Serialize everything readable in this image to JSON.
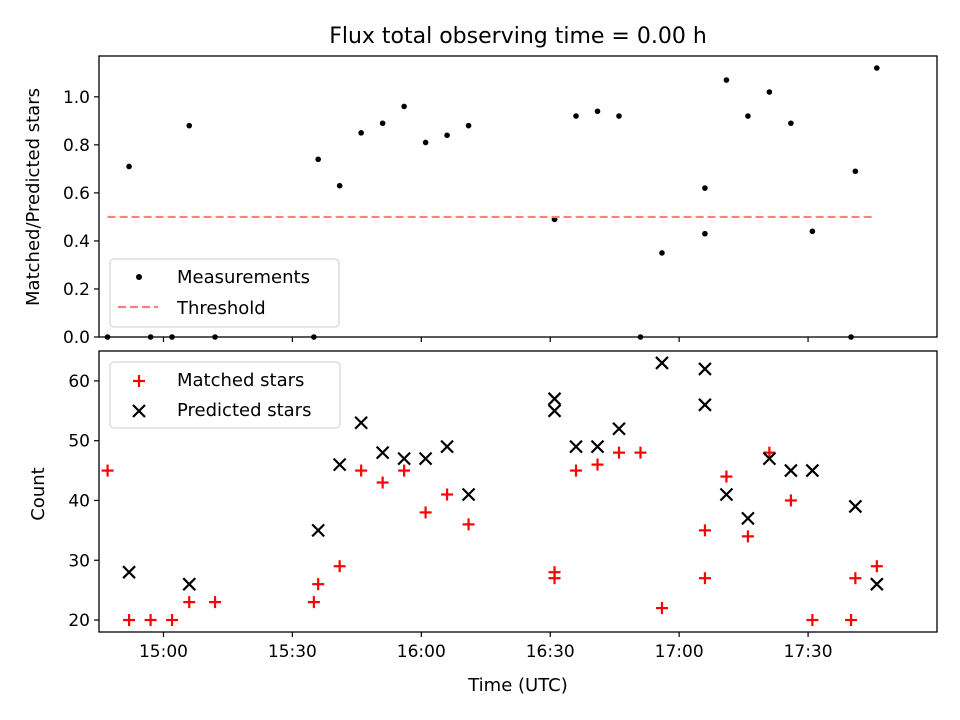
{
  "chart_data": [
    {
      "type": "scatter",
      "title": "Flux total observing time = 0.00 h",
      "xlabel": "",
      "ylabel": "Matched/Predicted stars",
      "xlim": [
        "14:45",
        "18:00"
      ],
      "ylim": [
        0,
        1.17
      ],
      "yticks": [
        "0.0",
        "0.2",
        "0.4",
        "0.6",
        "0.8",
        "1.0"
      ],
      "legend_position": "lower-left",
      "series": [
        {
          "name": "Measurements",
          "marker": "dot",
          "color": "#000000",
          "points": [
            [
              "14:47",
              0.0
            ],
            [
              "14:52",
              0.71
            ],
            [
              "14:57",
              0.0
            ],
            [
              "15:02",
              0.0
            ],
            [
              "15:06",
              0.88
            ],
            [
              "15:12",
              0.0
            ],
            [
              "15:35",
              0.0
            ],
            [
              "15:36",
              0.74
            ],
            [
              "15:41",
              0.63
            ],
            [
              "15:46",
              0.85
            ],
            [
              "15:51",
              0.89
            ],
            [
              "15:56",
              0.96
            ],
            [
              "16:01",
              0.81
            ],
            [
              "16:06",
              0.84
            ],
            [
              "16:11",
              0.88
            ],
            [
              "16:31",
              0.49
            ],
            [
              "16:31",
              0.49
            ],
            [
              "16:36",
              0.92
            ],
            [
              "16:41",
              0.94
            ],
            [
              "16:46",
              0.92
            ],
            [
              "16:51",
              0.0
            ],
            [
              "16:56",
              0.35
            ],
            [
              "17:06",
              0.43
            ],
            [
              "17:06",
              0.62
            ],
            [
              "17:11",
              1.07
            ],
            [
              "17:16",
              0.92
            ],
            [
              "17:21",
              1.02
            ],
            [
              "17:26",
              0.89
            ],
            [
              "17:31",
              0.44
            ],
            [
              "17:40",
              0.0
            ],
            [
              "17:41",
              0.69
            ],
            [
              "17:46",
              1.12
            ]
          ]
        },
        {
          "name": "Threshold",
          "marker": "dashed-line",
          "color": "#ff7f7f",
          "points": [
            [
              "14:47",
              0.5
            ],
            [
              "17:45",
              0.5
            ]
          ]
        }
      ]
    },
    {
      "type": "scatter",
      "title": "",
      "xlabel": "Time (UTC)",
      "ylabel": "Count",
      "xlim": [
        "14:45",
        "18:00"
      ],
      "ylim": [
        18,
        65
      ],
      "yticks": [
        "20",
        "30",
        "40",
        "50",
        "60"
      ],
      "xticks": [
        "15:00",
        "15:30",
        "16:00",
        "16:30",
        "17:00",
        "17:30"
      ],
      "legend_position": "upper-left",
      "series": [
        {
          "name": "Matched stars",
          "marker": "plus",
          "color": "#ff0000",
          "points": [
            [
              "14:47",
              45
            ],
            [
              "14:52",
              20
            ],
            [
              "14:57",
              20
            ],
            [
              "15:02",
              20
            ],
            [
              "15:06",
              23
            ],
            [
              "15:12",
              23
            ],
            [
              "15:35",
              23
            ],
            [
              "15:36",
              26
            ],
            [
              "15:41",
              29
            ],
            [
              "15:46",
              45
            ],
            [
              "15:51",
              43
            ],
            [
              "15:56",
              45
            ],
            [
              "16:01",
              38
            ],
            [
              "16:06",
              41
            ],
            [
              "16:11",
              36
            ],
            [
              "16:31",
              27
            ],
            [
              "16:31",
              28
            ],
            [
              "16:36",
              45
            ],
            [
              "16:41",
              46
            ],
            [
              "16:46",
              48
            ],
            [
              "16:51",
              48
            ],
            [
              "16:56",
              22
            ],
            [
              "17:06",
              27
            ],
            [
              "17:06",
              35
            ],
            [
              "17:11",
              44
            ],
            [
              "17:16",
              34
            ],
            [
              "17:21",
              48
            ],
            [
              "17:26",
              40
            ],
            [
              "17:31",
              20
            ],
            [
              "17:40",
              20
            ],
            [
              "17:41",
              27
            ],
            [
              "17:46",
              29
            ]
          ]
        },
        {
          "name": "Predicted stars",
          "marker": "x",
          "color": "#000000",
          "points": [
            [
              "14:52",
              28
            ],
            [
              "15:06",
              26
            ],
            [
              "15:36",
              35
            ],
            [
              "15:41",
              46
            ],
            [
              "15:46",
              53
            ],
            [
              "15:51",
              48
            ],
            [
              "15:56",
              47
            ],
            [
              "16:01",
              47
            ],
            [
              "16:06",
              49
            ],
            [
              "16:11",
              41
            ],
            [
              "16:31",
              55
            ],
            [
              "16:31",
              57
            ],
            [
              "16:36",
              49
            ],
            [
              "16:41",
              49
            ],
            [
              "16:46",
              52
            ],
            [
              "16:56",
              63
            ],
            [
              "17:06",
              62
            ],
            [
              "17:06",
              56
            ],
            [
              "17:11",
              41
            ],
            [
              "17:16",
              37
            ],
            [
              "17:21",
              47
            ],
            [
              "17:26",
              45
            ],
            [
              "17:31",
              45
            ],
            [
              "17:41",
              39
            ],
            [
              "17:46",
              26
            ]
          ]
        }
      ]
    }
  ]
}
